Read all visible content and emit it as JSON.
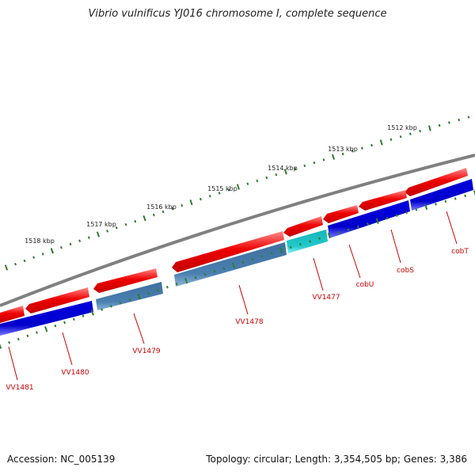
{
  "title": "Vibrio vulnificus YJ016 chromosome I, complete sequence",
  "footer": {
    "accession": "Accession: NC_005139",
    "summary": "Topology: circular; Length: 3,354,505 bp; Genes: 3,386"
  },
  "colors": {
    "backbone": "#808080",
    "forward_feature": "#ee0000",
    "forward_highlight": "#ff9a9a",
    "reverse_cds": "#0000dd",
    "reverse_highlight": "#6f6fff",
    "reverse_steel": "#4a7fb0",
    "reverse_cyan": "#22c8cc",
    "tick": "#2e7d2e",
    "gene_label": "#cc0000"
  },
  "kbp_ticks": [
    {
      "label": "1512 kbp"
    },
    {
      "label": "1513 kbp"
    },
    {
      "label": "1514 kbp"
    },
    {
      "label": "1515 kbp"
    },
    {
      "label": "1516 kbp"
    },
    {
      "label": "1517 kbp"
    },
    {
      "label": "1518 kbp"
    }
  ],
  "gene_labels": [
    {
      "name": "cobT"
    },
    {
      "name": "cobS"
    },
    {
      "name": "cobU"
    },
    {
      "name": "VV1477"
    },
    {
      "name": "VV1478"
    },
    {
      "name": "VV1479"
    },
    {
      "name": "VV1480"
    },
    {
      "name": "VV1481"
    }
  ]
}
